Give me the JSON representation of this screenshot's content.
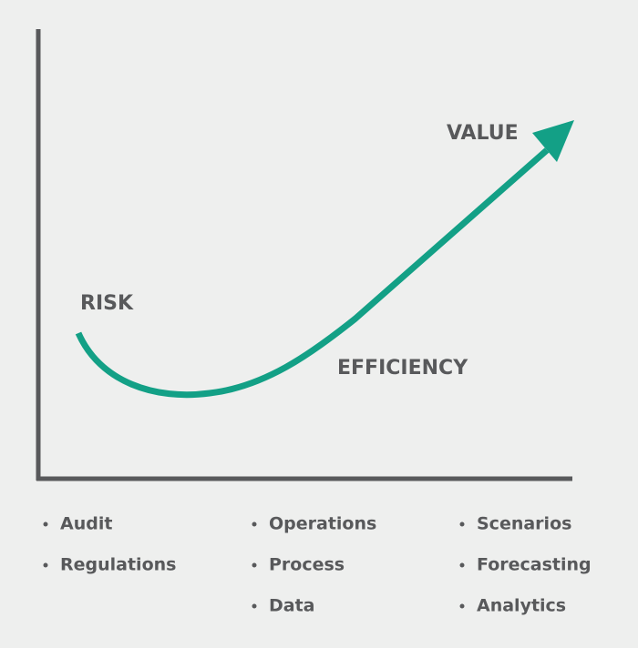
{
  "labels": {
    "risk": "RISK",
    "efficiency": "EFFICIENCY",
    "value": "VALUE"
  },
  "columns": [
    [
      "Audit",
      "Regulations"
    ],
    [
      "Operations",
      "Process",
      "Data"
    ],
    [
      "Scenarios",
      "Forecasting",
      "Analytics"
    ]
  ]
}
